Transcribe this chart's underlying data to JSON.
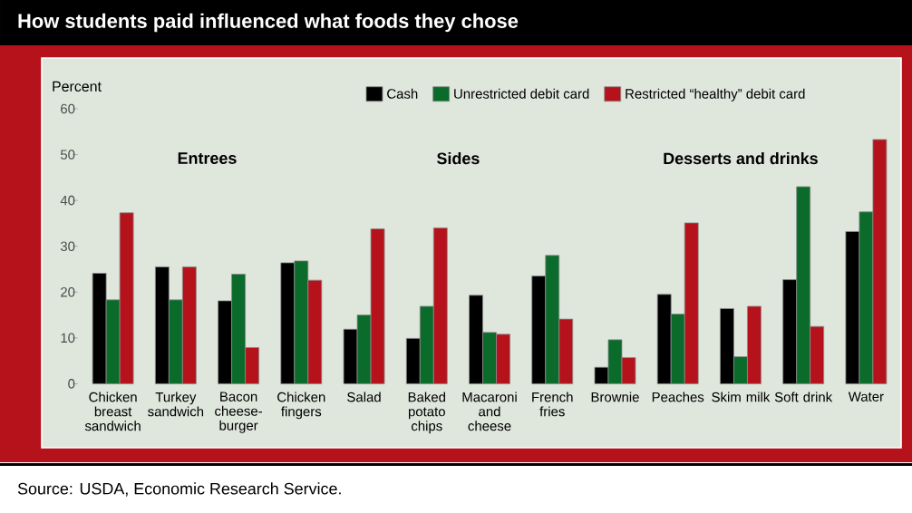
{
  "chart_data": {
    "type": "bar",
    "title": "How students paid influenced what foods they chose",
    "ylabel": "Percent",
    "categories": [
      "Chicken breast sandwich",
      "Turkey sandwich",
      "Bacon cheese-burger",
      "Chicken fingers",
      "Salad",
      "Baked potato chips",
      "Macaroni and cheese",
      "French fries",
      "Brownie",
      "Peaches",
      "Skim milk",
      "Soft drink",
      "Water"
    ],
    "series": [
      {
        "name": "Cash",
        "color": "#000000",
        "values": [
          24.1,
          25.5,
          18.1,
          26.4,
          11.9,
          9.9,
          19.3,
          23.5,
          3.6,
          19.5,
          16.4,
          22.7,
          33.2
        ]
      },
      {
        "name": "Unrestricted debit card",
        "color": "#0a6b2a",
        "values": [
          18.3,
          18.3,
          23.9,
          26.8,
          15.0,
          16.9,
          11.2,
          28.0,
          9.6,
          15.2,
          5.9,
          43.0,
          37.5
        ]
      },
      {
        "name": "Restricted “healthy” debit card",
        "color": "#b5121b",
        "values": [
          37.3,
          25.5,
          7.9,
          22.6,
          33.8,
          34.0,
          10.8,
          14.1,
          5.7,
          35.1,
          16.9,
          12.5,
          53.3
        ]
      }
    ],
    "ylim": [
      0,
      60
    ],
    "yticks": [
      0,
      10,
      20,
      30,
      40,
      50,
      60
    ],
    "legend": "top",
    "annotations": [
      "Entrees",
      "Sides",
      "Desserts and drinks",
      "Source: USDA, Economic Research Service."
    ]
  }
}
